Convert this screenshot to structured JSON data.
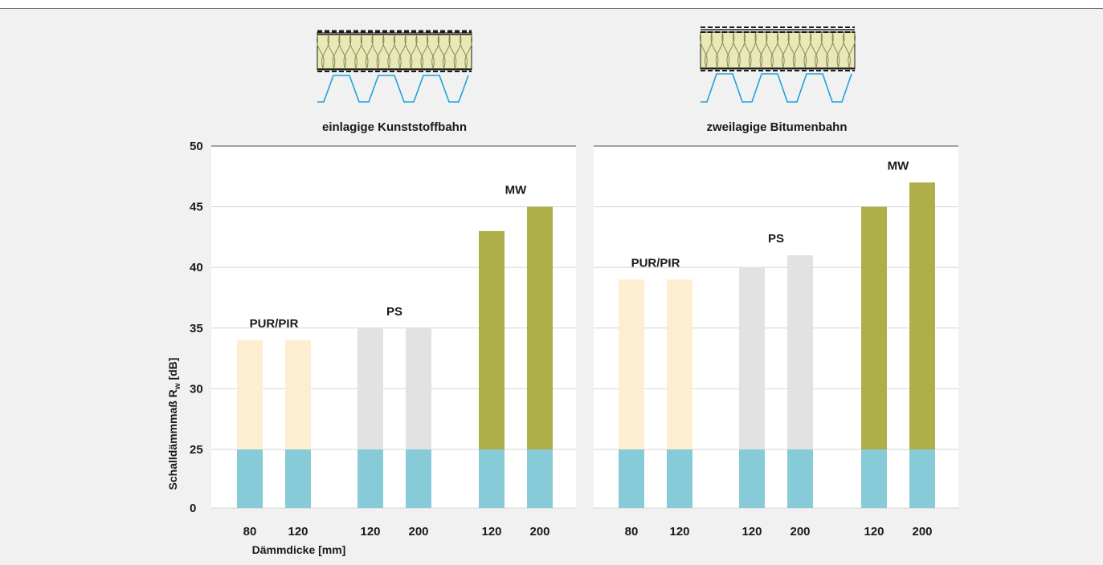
{
  "chart_data": [
    {
      "type": "bar",
      "title": "einlagige Kunststoffbahn",
      "ylabel_main": "Schalldämmmaß R",
      "ylabel_sub": "w",
      "ylabel_unit": " [dB]",
      "xlabel": "Dämmdicke [mm]",
      "y_ticks": [
        "0",
        "25",
        "30",
        "35",
        "40",
        "45",
        "50"
      ],
      "groups": [
        {
          "label": "PUR/PIR",
          "color": "#fcefd1",
          "categories": [
            "80",
            "120"
          ],
          "values": [
            34,
            34
          ]
        },
        {
          "label": "PS",
          "color": "#e2e2e2",
          "categories": [
            "120",
            "200"
          ],
          "values": [
            35,
            35
          ]
        },
        {
          "label": "MW",
          "color": "#aeaf4a",
          "categories": [
            "120",
            "200"
          ],
          "values": [
            43,
            45
          ]
        }
      ],
      "base_value": 25,
      "base_color": "#87cbd9",
      "grid": true
    },
    {
      "type": "bar",
      "title": "zweilagige Bitumenbahn",
      "groups": [
        {
          "label": "PUR/PIR",
          "color": "#fcefd1",
          "categories": [
            "80",
            "120"
          ],
          "values": [
            39,
            39
          ]
        },
        {
          "label": "PS",
          "color": "#e2e2e2",
          "categories": [
            "120",
            "200"
          ],
          "values": [
            40,
            41
          ]
        },
        {
          "label": "MW",
          "color": "#aeaf4a",
          "categories": [
            "120",
            "200"
          ],
          "values": [
            45,
            47
          ]
        }
      ],
      "base_value": 25,
      "base_color": "#87cbd9",
      "grid": true
    }
  ],
  "colors": {
    "insulation_fill": "#e9e9b8",
    "membrane_line": "#1a1a1a",
    "deck_line": "#1aa3d9"
  },
  "icons": [
    "roof-section-single-layer-icon",
    "roof-section-double-layer-icon"
  ]
}
